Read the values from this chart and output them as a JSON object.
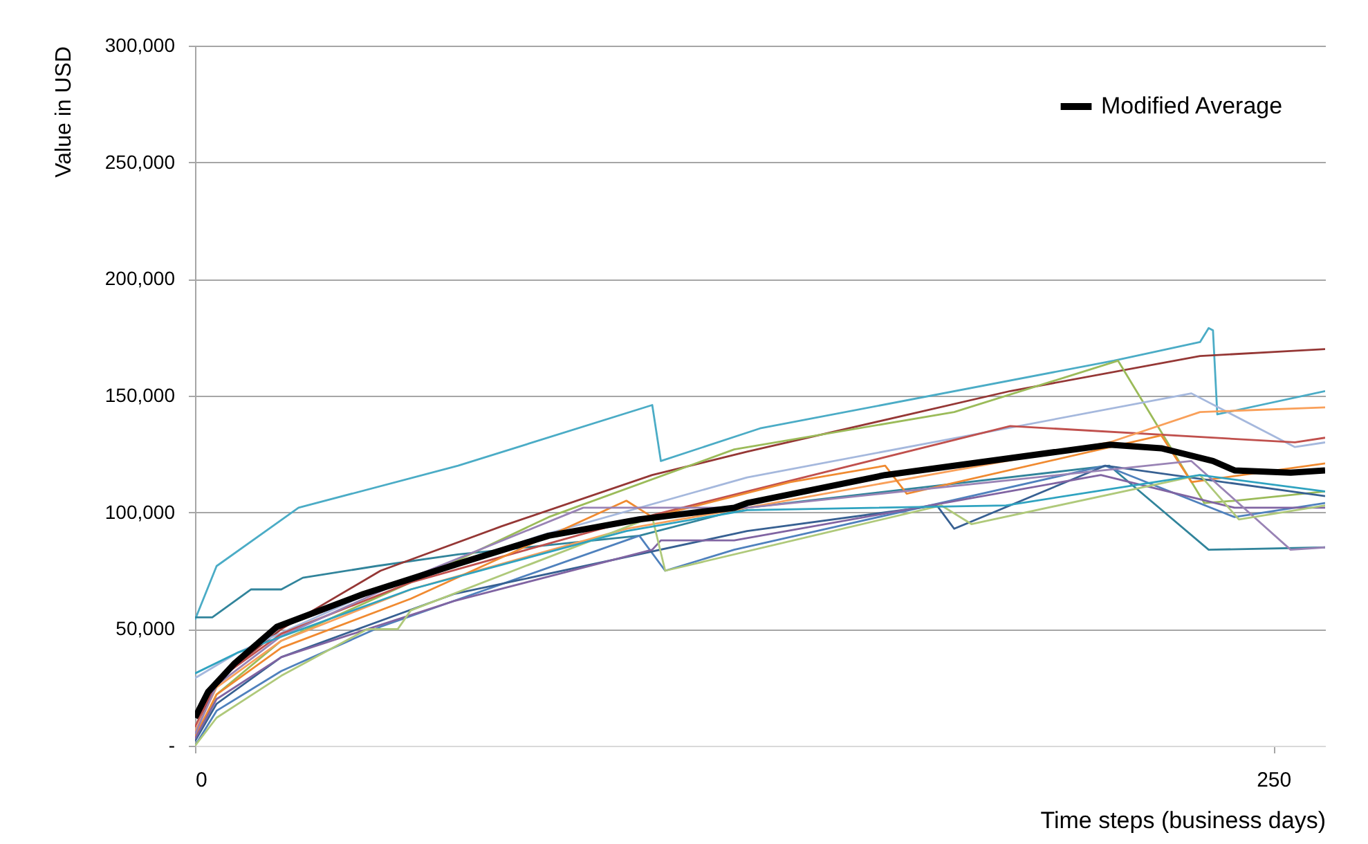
{
  "chart_data": {
    "type": "line",
    "xlabel": "Time steps (business days)",
    "ylabel": "Value in USD",
    "xlim": [
      0,
      262
    ],
    "xticks": [
      0,
      250
    ],
    "ylim": [
      0,
      300000
    ],
    "yticks": [
      {
        "value": 0,
        "label": "-"
      },
      {
        "value": 50000,
        "label": "50,000"
      },
      {
        "value": 100000,
        "label": "100,000"
      },
      {
        "value": 150000,
        "label": "150,000"
      },
      {
        "value": 200000,
        "label": "200,000"
      },
      {
        "value": 250000,
        "label": "250,000"
      },
      {
        "value": 300000,
        "label": "300,000"
      }
    ],
    "grid": "y",
    "legend": "top right",
    "marker": "none",
    "line_style": "solid",
    "series": [
      {
        "color": "#4bacc6",
        "x": [
          0,
          5,
          24,
          61,
          106,
          108,
          131,
          213,
          233,
          235,
          236,
          237,
          262
        ],
        "values": [
          54000,
          77000,
          102000,
          120000,
          146000,
          122000,
          136000,
          165000,
          173000,
          179000,
          178000,
          142000,
          152000
        ]
      },
      {
        "color": "#31849b",
        "x": [
          0,
          4,
          13,
          20,
          25,
          42,
          61,
          103,
          128,
          212,
          235,
          262
        ],
        "values": [
          55000,
          55000,
          67000,
          67000,
          72000,
          77000,
          82000,
          90000,
          102000,
          120000,
          84000,
          85000
        ]
      },
      {
        "color": "#953735",
        "x": [
          0,
          5,
          20,
          43,
          71,
          106,
          128,
          189,
          233,
          262
        ],
        "values": [
          5000,
          28000,
          50000,
          75000,
          94000,
          116000,
          126000,
          152000,
          167000,
          170000
        ]
      },
      {
        "color": "#9bbb59",
        "x": [
          0,
          5,
          20,
          50,
          82,
          125,
          176,
          214,
          234,
          241,
          262
        ],
        "values": [
          2000,
          22000,
          45000,
          70000,
          98000,
          127000,
          143000,
          165000,
          104000,
          105000,
          109000
        ]
      },
      {
        "color": "#a5b8dd",
        "x": [
          0,
          10,
          40,
          80,
          128,
          231,
          255,
          262
        ],
        "values": [
          29000,
          40000,
          65000,
          90000,
          115000,
          151000,
          128000,
          130000
        ]
      },
      {
        "color": "#c0504d",
        "x": [
          0,
          5,
          20,
          50,
          100,
          128,
          189,
          255,
          262
        ],
        "values": [
          8000,
          28000,
          48000,
          70000,
          96000,
          109000,
          137000,
          130000,
          132000
        ]
      },
      {
        "color": "#f9a05a",
        "x": [
          0,
          5,
          20,
          50,
          100,
          128,
          212,
          233,
          262
        ],
        "values": [
          6000,
          25000,
          45000,
          67000,
          93000,
          102000,
          130000,
          143000,
          145000
        ]
      },
      {
        "color": "#f08a30",
        "x": [
          0,
          5,
          20,
          50,
          100,
          106,
          138,
          160,
          165,
          224,
          231,
          262
        ],
        "values": [
          4000,
          22000,
          42000,
          63000,
          105000,
          98000,
          113000,
          120000,
          108000,
          133000,
          113000,
          121000
        ]
      },
      {
        "color": "#4f81bd",
        "x": [
          0,
          5,
          20,
          43,
          103,
          109,
          125,
          211,
          241,
          262
        ],
        "values": [
          0,
          15000,
          32000,
          51000,
          90000,
          75000,
          84000,
          120000,
          98000,
          104000
        ]
      },
      {
        "color": "#376092",
        "x": [
          0,
          5,
          20,
          60,
          128,
          172,
          176,
          211,
          262
        ],
        "values": [
          2000,
          18000,
          38000,
          65000,
          92000,
          103000,
          93000,
          120000,
          107000
        ]
      },
      {
        "color": "#8064a2",
        "x": [
          0,
          5,
          20,
          60,
          106,
          108,
          125,
          210,
          241,
          262
        ],
        "values": [
          3000,
          20000,
          38000,
          62000,
          84000,
          88000,
          88000,
          116000,
          102000,
          102000
        ]
      },
      {
        "color": "#9983b5",
        "x": [
          0,
          5,
          20,
          50,
          90,
          128,
          231,
          254,
          262
        ],
        "values": [
          5000,
          26000,
          47000,
          72000,
          102000,
          102000,
          122000,
          84000,
          85000
        ]
      },
      {
        "color": "#afc97a",
        "x": [
          0,
          5,
          20,
          40,
          47,
          50,
          106,
          109,
          173,
          180,
          233,
          242,
          262
        ],
        "values": [
          0,
          12000,
          30000,
          50000,
          50000,
          58000,
          98000,
          75000,
          103000,
          95000,
          116000,
          97000,
          103000
        ]
      },
      {
        "color": "#2fa3c0",
        "x": [
          0,
          10,
          50,
          100,
          128,
          188,
          233,
          262
        ],
        "values": [
          31000,
          40000,
          67000,
          92000,
          101000,
          103000,
          116000,
          109000
        ]
      },
      {
        "name": "Modified Average",
        "color": "#000000",
        "x": [
          0,
          3,
          9,
          19,
          39,
          61,
          82,
          103,
          125,
          128,
          160,
          212,
          224,
          236,
          241,
          254,
          262
        ],
        "values": [
          12000,
          23000,
          35000,
          51000,
          65000,
          78000,
          90000,
          97000,
          102000,
          104000,
          116000,
          129000,
          127500,
          122000,
          118000,
          117000,
          118000
        ]
      }
    ]
  }
}
